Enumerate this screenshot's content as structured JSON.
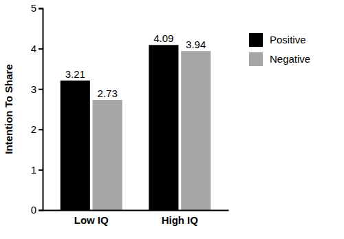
{
  "chart_data": {
    "type": "bar",
    "y_label": "Intention To Share",
    "categories": [
      "Low IQ",
      "High IQ"
    ],
    "series": [
      {
        "name": "Positive",
        "color": "#000000",
        "values": [
          3.21,
          4.09
        ]
      },
      {
        "name": "Negative",
        "color": "#a6a6a6",
        "values": [
          2.73,
          3.94
        ]
      }
    ],
    "ylim": [
      0,
      5
    ],
    "yticks": [
      0,
      1,
      2,
      3,
      4,
      5
    ],
    "grid": false,
    "legend": "right",
    "data_labels": true
  }
}
